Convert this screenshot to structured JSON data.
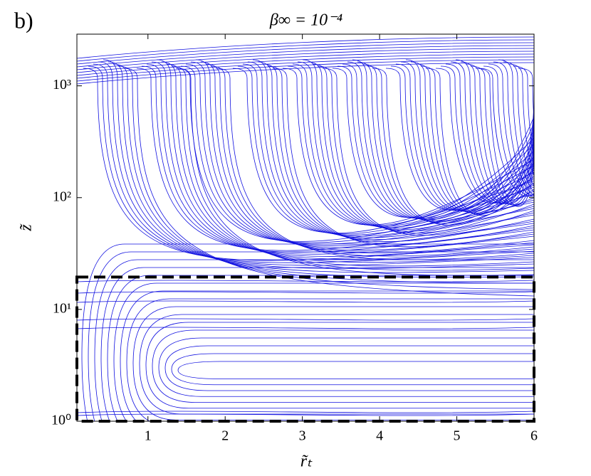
{
  "chart_data": {
    "type": "contour",
    "panel_label": "b)",
    "title": "β∞ = 10⁻⁴",
    "x_label": "r̃ₜ",
    "y_label": "z̃",
    "xlim": [
      0.08,
      6
    ],
    "ylim": [
      1,
      2900
    ],
    "log_y": true,
    "xticks": [
      1,
      2,
      3,
      4,
      5,
      6
    ],
    "yticks": [
      {
        "value": 1,
        "label": "10⁰"
      },
      {
        "value": 10,
        "label": "10¹"
      },
      {
        "value": 100,
        "label": "10²"
      },
      {
        "value": 1000,
        "label": "10³"
      }
    ],
    "color": "#1010e0",
    "highlight_box": {
      "x": [
        0.08,
        6
      ],
      "y": [
        1,
        19.5
      ]
    }
  }
}
